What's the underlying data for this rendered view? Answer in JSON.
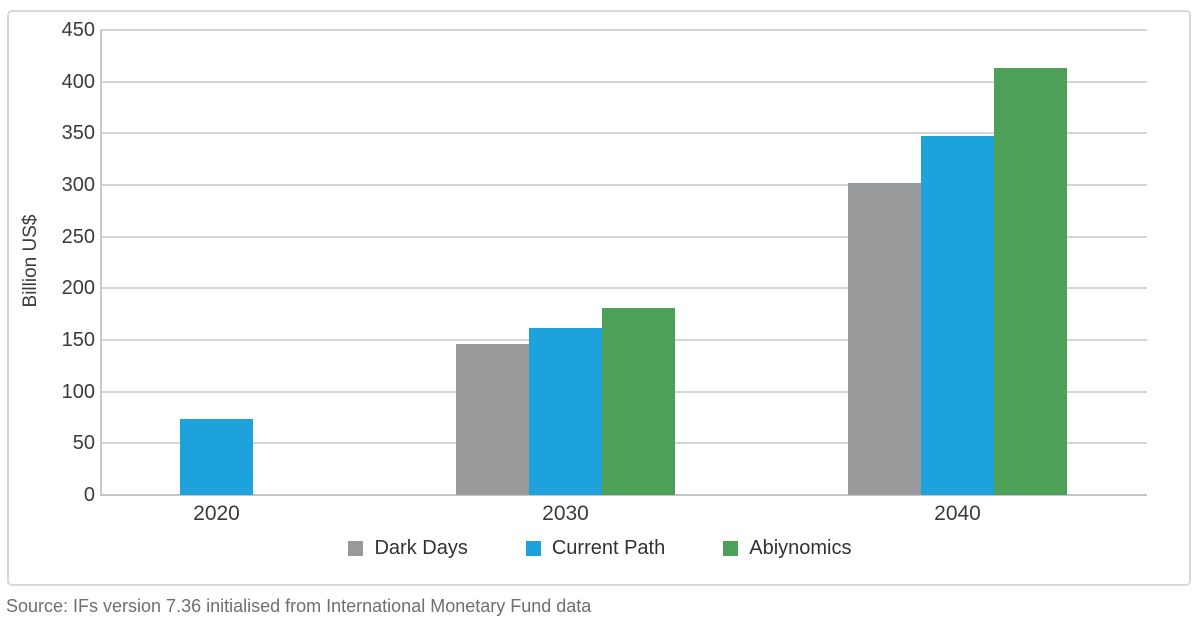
{
  "chart_data": {
    "type": "bar",
    "title": "",
    "xlabel": "",
    "ylabel": "Billion US$",
    "categories": [
      "2020",
      "2030",
      "2040"
    ],
    "series": [
      {
        "name": "Dark Days",
        "color": "#97999b",
        "values": [
          null,
          146,
          302
        ]
      },
      {
        "name": "Current Path",
        "color": "#1ea2dc",
        "values": [
          74,
          162,
          347
        ]
      },
      {
        "name": "Abiynomics",
        "color": "#4ca058",
        "values": [
          null,
          181,
          413
        ]
      }
    ],
    "ylim": [
      0,
      450
    ],
    "ytick_step": 50,
    "ytick_labels": [
      "0",
      "50",
      "100",
      "150",
      "200",
      "250",
      "300",
      "350",
      "400",
      "450"
    ],
    "grid": true,
    "legend_position": "bottom",
    "plot_border_color": "#d7d8d9",
    "gridline_color": "#d4d5d6"
  },
  "source_note": "Source: IFs version 7.36 initialised from International Monetary Fund data"
}
